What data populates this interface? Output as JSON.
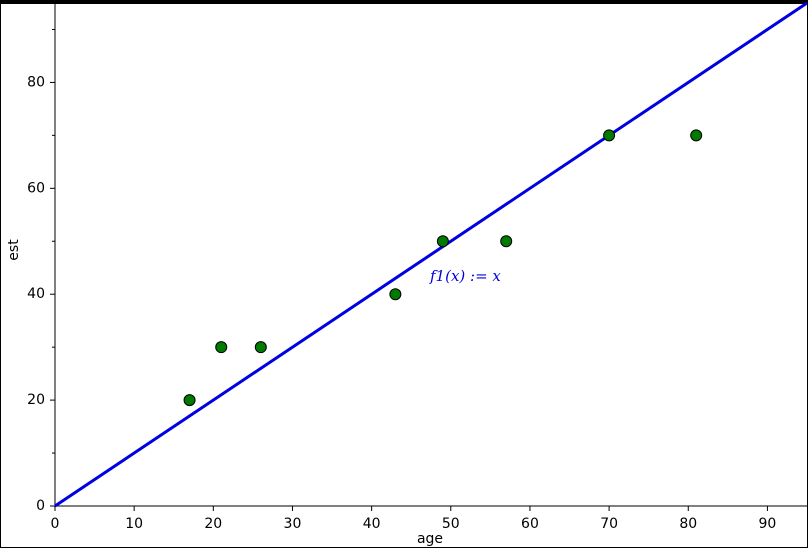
{
  "chart_data": {
    "type": "scatter",
    "x_label": "age",
    "y_label": "est",
    "x": [
      17,
      21,
      26,
      43,
      49,
      57,
      70,
      81
    ],
    "values": [
      20,
      30,
      30,
      40,
      50,
      50,
      70,
      70
    ],
    "color": "#007a00",
    "line": {
      "x": [
        0,
        95
      ],
      "y": [
        0,
        95
      ],
      "color": "#0000e0"
    },
    "annotation": "f1(x) := x",
    "xlim": [
      0,
      95
    ],
    "ylim": [
      0,
      95
    ],
    "xticks": [
      0,
      10,
      20,
      30,
      40,
      50,
      60,
      70,
      80,
      90
    ],
    "yticks": [
      0,
      20,
      40,
      60,
      80
    ],
    "yminorticks": [
      10,
      30,
      50,
      70,
      90
    ]
  }
}
